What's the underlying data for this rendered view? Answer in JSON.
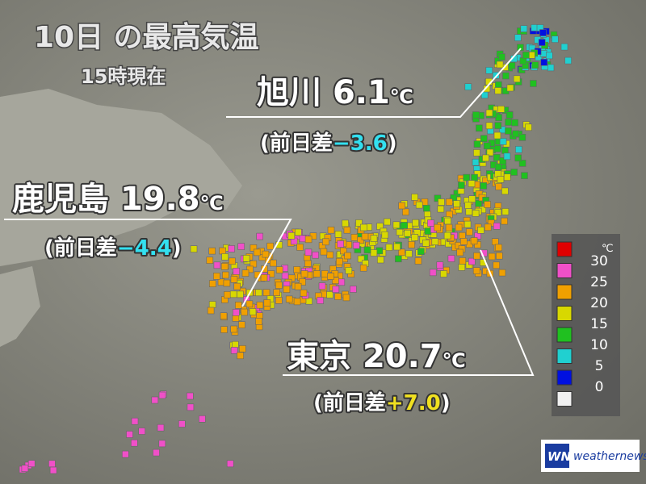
{
  "title": "10日 の最高気温",
  "subtitle": "15時現在",
  "callouts": [
    {
      "city": "旭川",
      "temp": "6.1",
      "unit": "℃",
      "diff_prefix": "(前日差",
      "diff": "−3.6",
      "diff_suffix": ")",
      "diff_color": "#33e0f0"
    },
    {
      "city": "鹿児島",
      "temp": "19.8",
      "unit": "℃",
      "diff_prefix": "(前日差",
      "diff": "−4.4",
      "diff_suffix": ")",
      "diff_color": "#33e0f0"
    },
    {
      "city": "東京",
      "temp": "20.7",
      "unit": "℃",
      "diff_prefix": "(前日差",
      "diff": "+7.0",
      "diff_suffix": ")",
      "diff_color": "#f0e020"
    }
  ],
  "legend": {
    "unit": "℃",
    "labels": [
      30,
      25,
      20,
      15,
      10,
      5,
      0
    ],
    "colors": [
      "#e00000",
      "#f050c8",
      "#f0a000",
      "#d8d800",
      "#20c020",
      "#20d0d0",
      "#0010e0",
      "#f0f0f0"
    ]
  },
  "logo": "weathernews"
}
